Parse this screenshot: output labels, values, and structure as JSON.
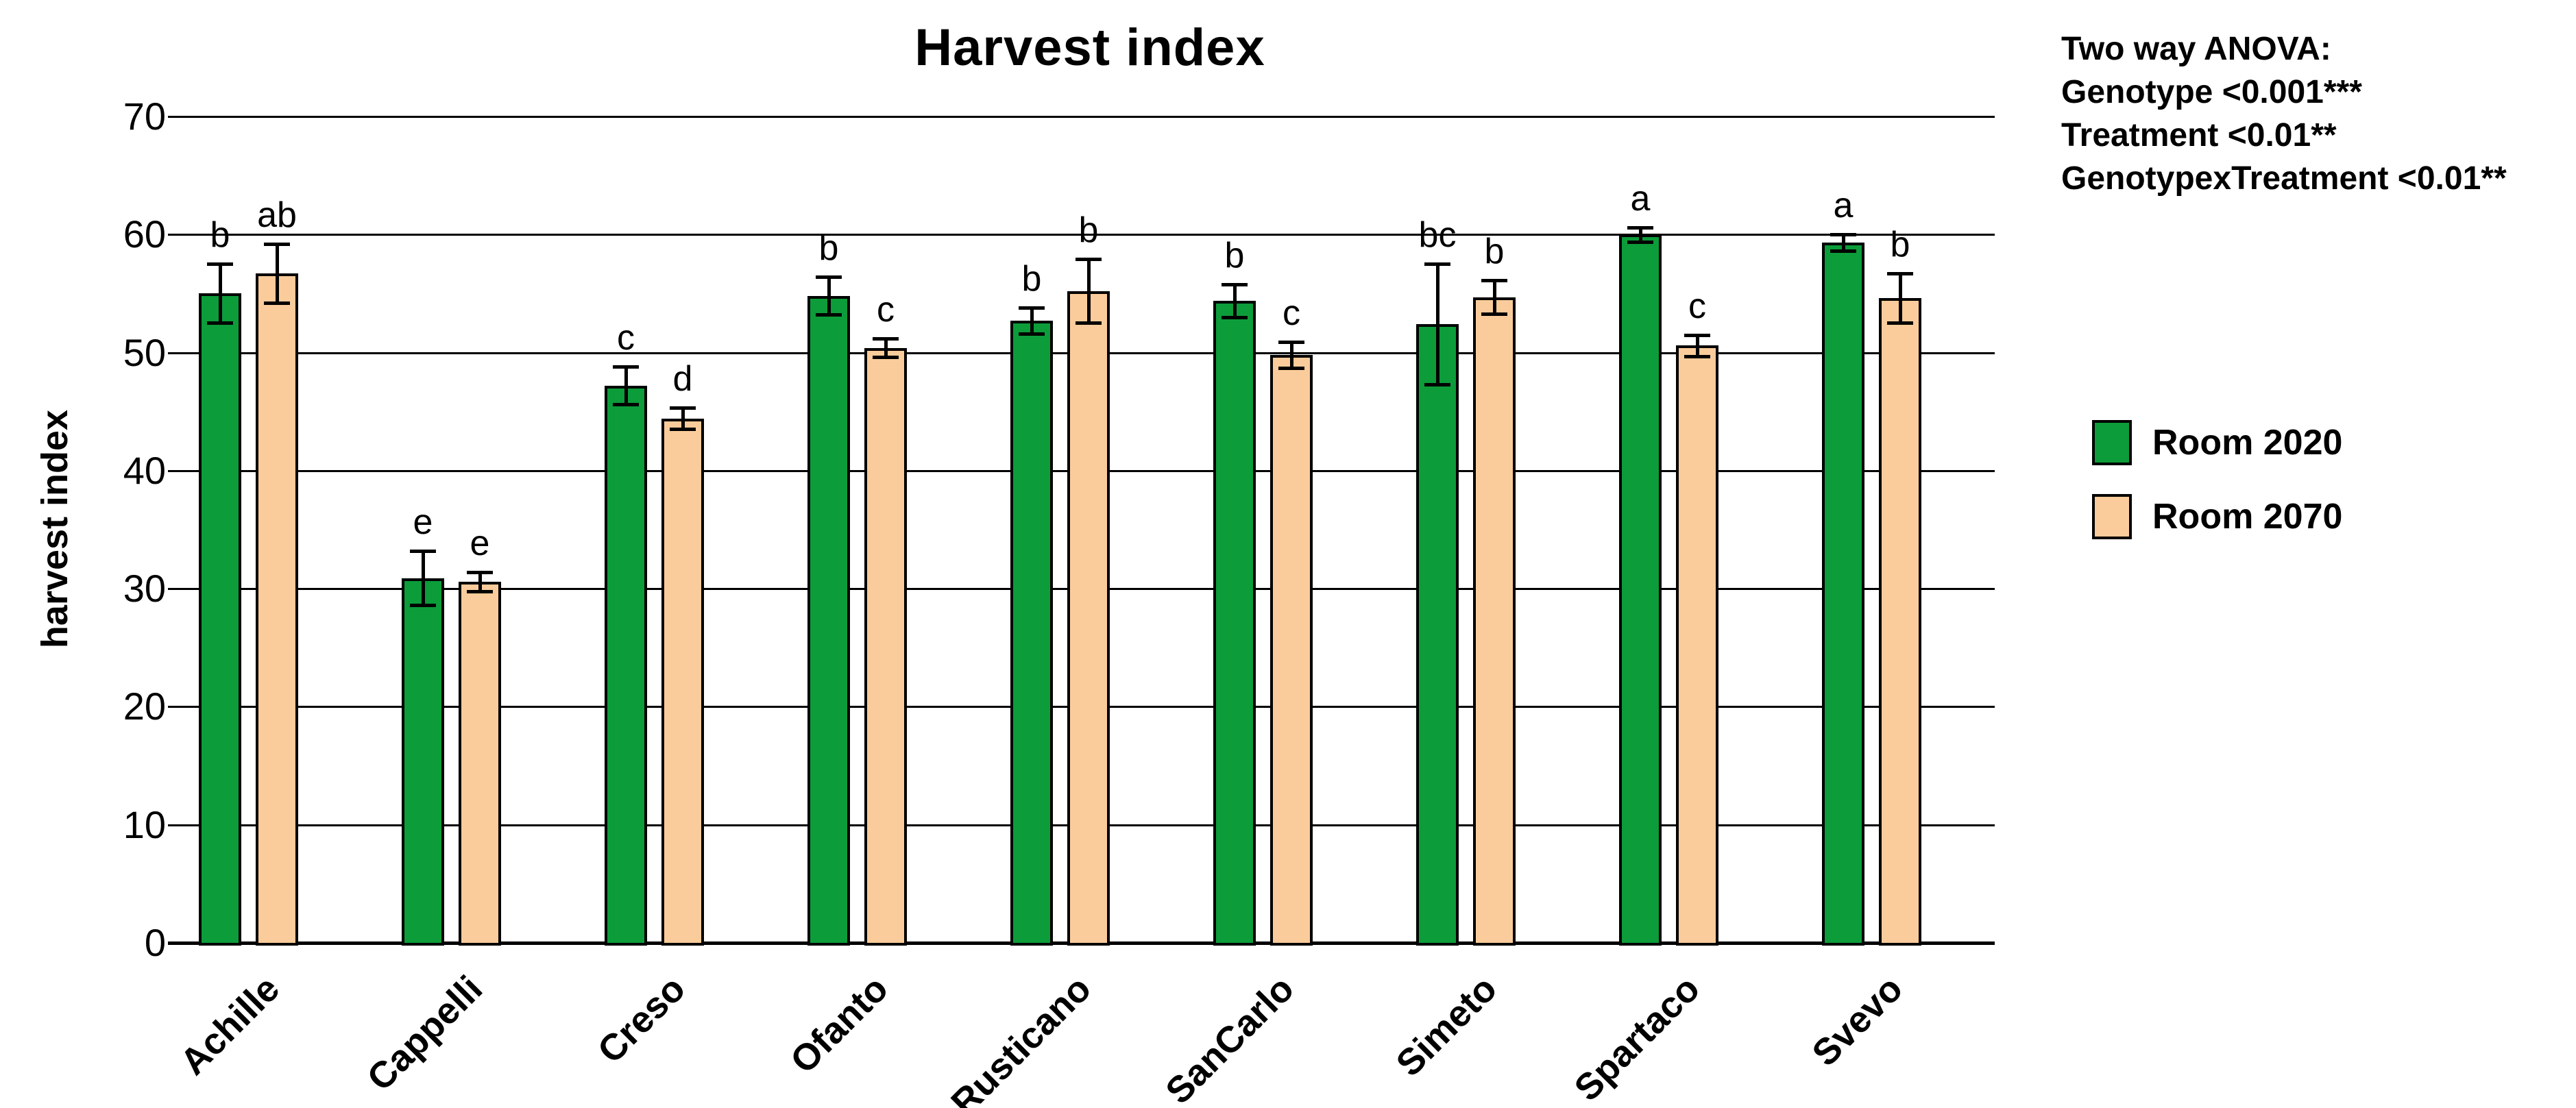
{
  "chart_data": {
    "type": "bar",
    "title": "Harvest index",
    "ylabel": "harvest index",
    "ylim": [
      0,
      70
    ],
    "yticks": [
      0,
      10,
      20,
      30,
      40,
      50,
      60,
      70
    ],
    "grid": true,
    "legend_position": "right",
    "categories": [
      "Achille",
      "Cappelli",
      "Creso",
      "Ofanto",
      "Rusticano",
      "SanCarlo",
      "Simeto",
      "Spartaco",
      "Svevo"
    ],
    "series": [
      {
        "name": "Room 2020",
        "color": "#0c9c3a",
        "values": [
          55.0,
          30.9,
          47.2,
          54.8,
          52.7,
          54.4,
          52.4,
          60.0,
          59.3
        ],
        "errors": [
          2.5,
          2.3,
          1.6,
          1.6,
          1.1,
          1.4,
          5.1,
          0.6,
          0.7
        ],
        "letters": [
          "b",
          "e",
          "c",
          "b",
          "b",
          "b",
          "bc",
          "a",
          "a"
        ]
      },
      {
        "name": "Room 2070",
        "color": "#fbcc9b",
        "values": [
          56.7,
          30.6,
          44.4,
          50.4,
          55.2,
          49.8,
          54.7,
          50.6,
          54.6
        ],
        "errors": [
          2.5,
          0.8,
          0.9,
          0.8,
          2.7,
          1.1,
          1.4,
          0.9,
          2.1
        ],
        "letters": [
          "ab",
          "e",
          "d",
          "c",
          "b",
          "c",
          "b",
          "c",
          "b"
        ]
      }
    ]
  },
  "anova": {
    "heading": "Two way ANOVA:",
    "lines": [
      "Genotype <0.001***",
      "Treatment <0.01**",
      "GenotypexTreatment <0.01**"
    ]
  },
  "legend": {
    "items": [
      {
        "label": "Room 2020",
        "color": "#0c9c3a"
      },
      {
        "label": "Room 2070",
        "color": "#fbcc9b"
      }
    ]
  }
}
